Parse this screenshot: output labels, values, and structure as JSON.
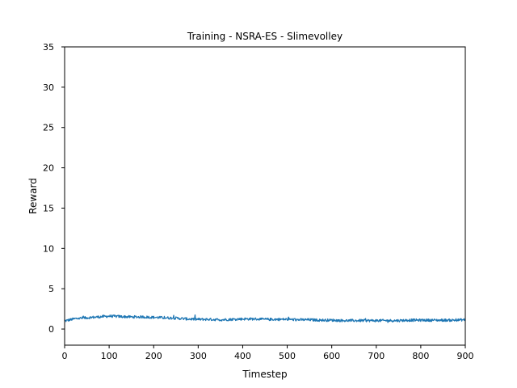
{
  "chart_data": {
    "type": "line",
    "title": "Training - NSRA-ES - Slimevolley",
    "xlabel": "Timestep",
    "ylabel": "Reward",
    "xlim": [
      0,
      900
    ],
    "ylim": [
      -2,
      35
    ],
    "xticks": [
      0,
      100,
      200,
      300,
      400,
      500,
      600,
      700,
      800,
      900
    ],
    "yticks": [
      0,
      5,
      10,
      15,
      20,
      25,
      30,
      35
    ],
    "grid": false,
    "series": [
      {
        "color": "#1f77b4",
        "x": [
          0,
          25,
          50,
          75,
          100,
          125,
          150,
          175,
          200,
          225,
          250,
          275,
          300,
          325,
          350,
          375,
          400,
          425,
          450,
          475,
          500,
          525,
          550,
          575,
          600,
          625,
          650,
          675,
          700,
          725,
          750,
          775,
          800,
          825,
          850,
          875,
          900
        ],
        "values": [
          1.0,
          1.3,
          1.4,
          1.5,
          1.6,
          1.55,
          1.5,
          1.5,
          1.45,
          1.4,
          1.35,
          1.25,
          1.2,
          1.2,
          1.15,
          1.2,
          1.25,
          1.25,
          1.2,
          1.2,
          1.2,
          1.15,
          1.15,
          1.1,
          1.1,
          1.05,
          1.05,
          1.05,
          1.05,
          1.05,
          1.05,
          1.1,
          1.1,
          1.1,
          1.1,
          1.1,
          1.15
        ]
      }
    ]
  }
}
